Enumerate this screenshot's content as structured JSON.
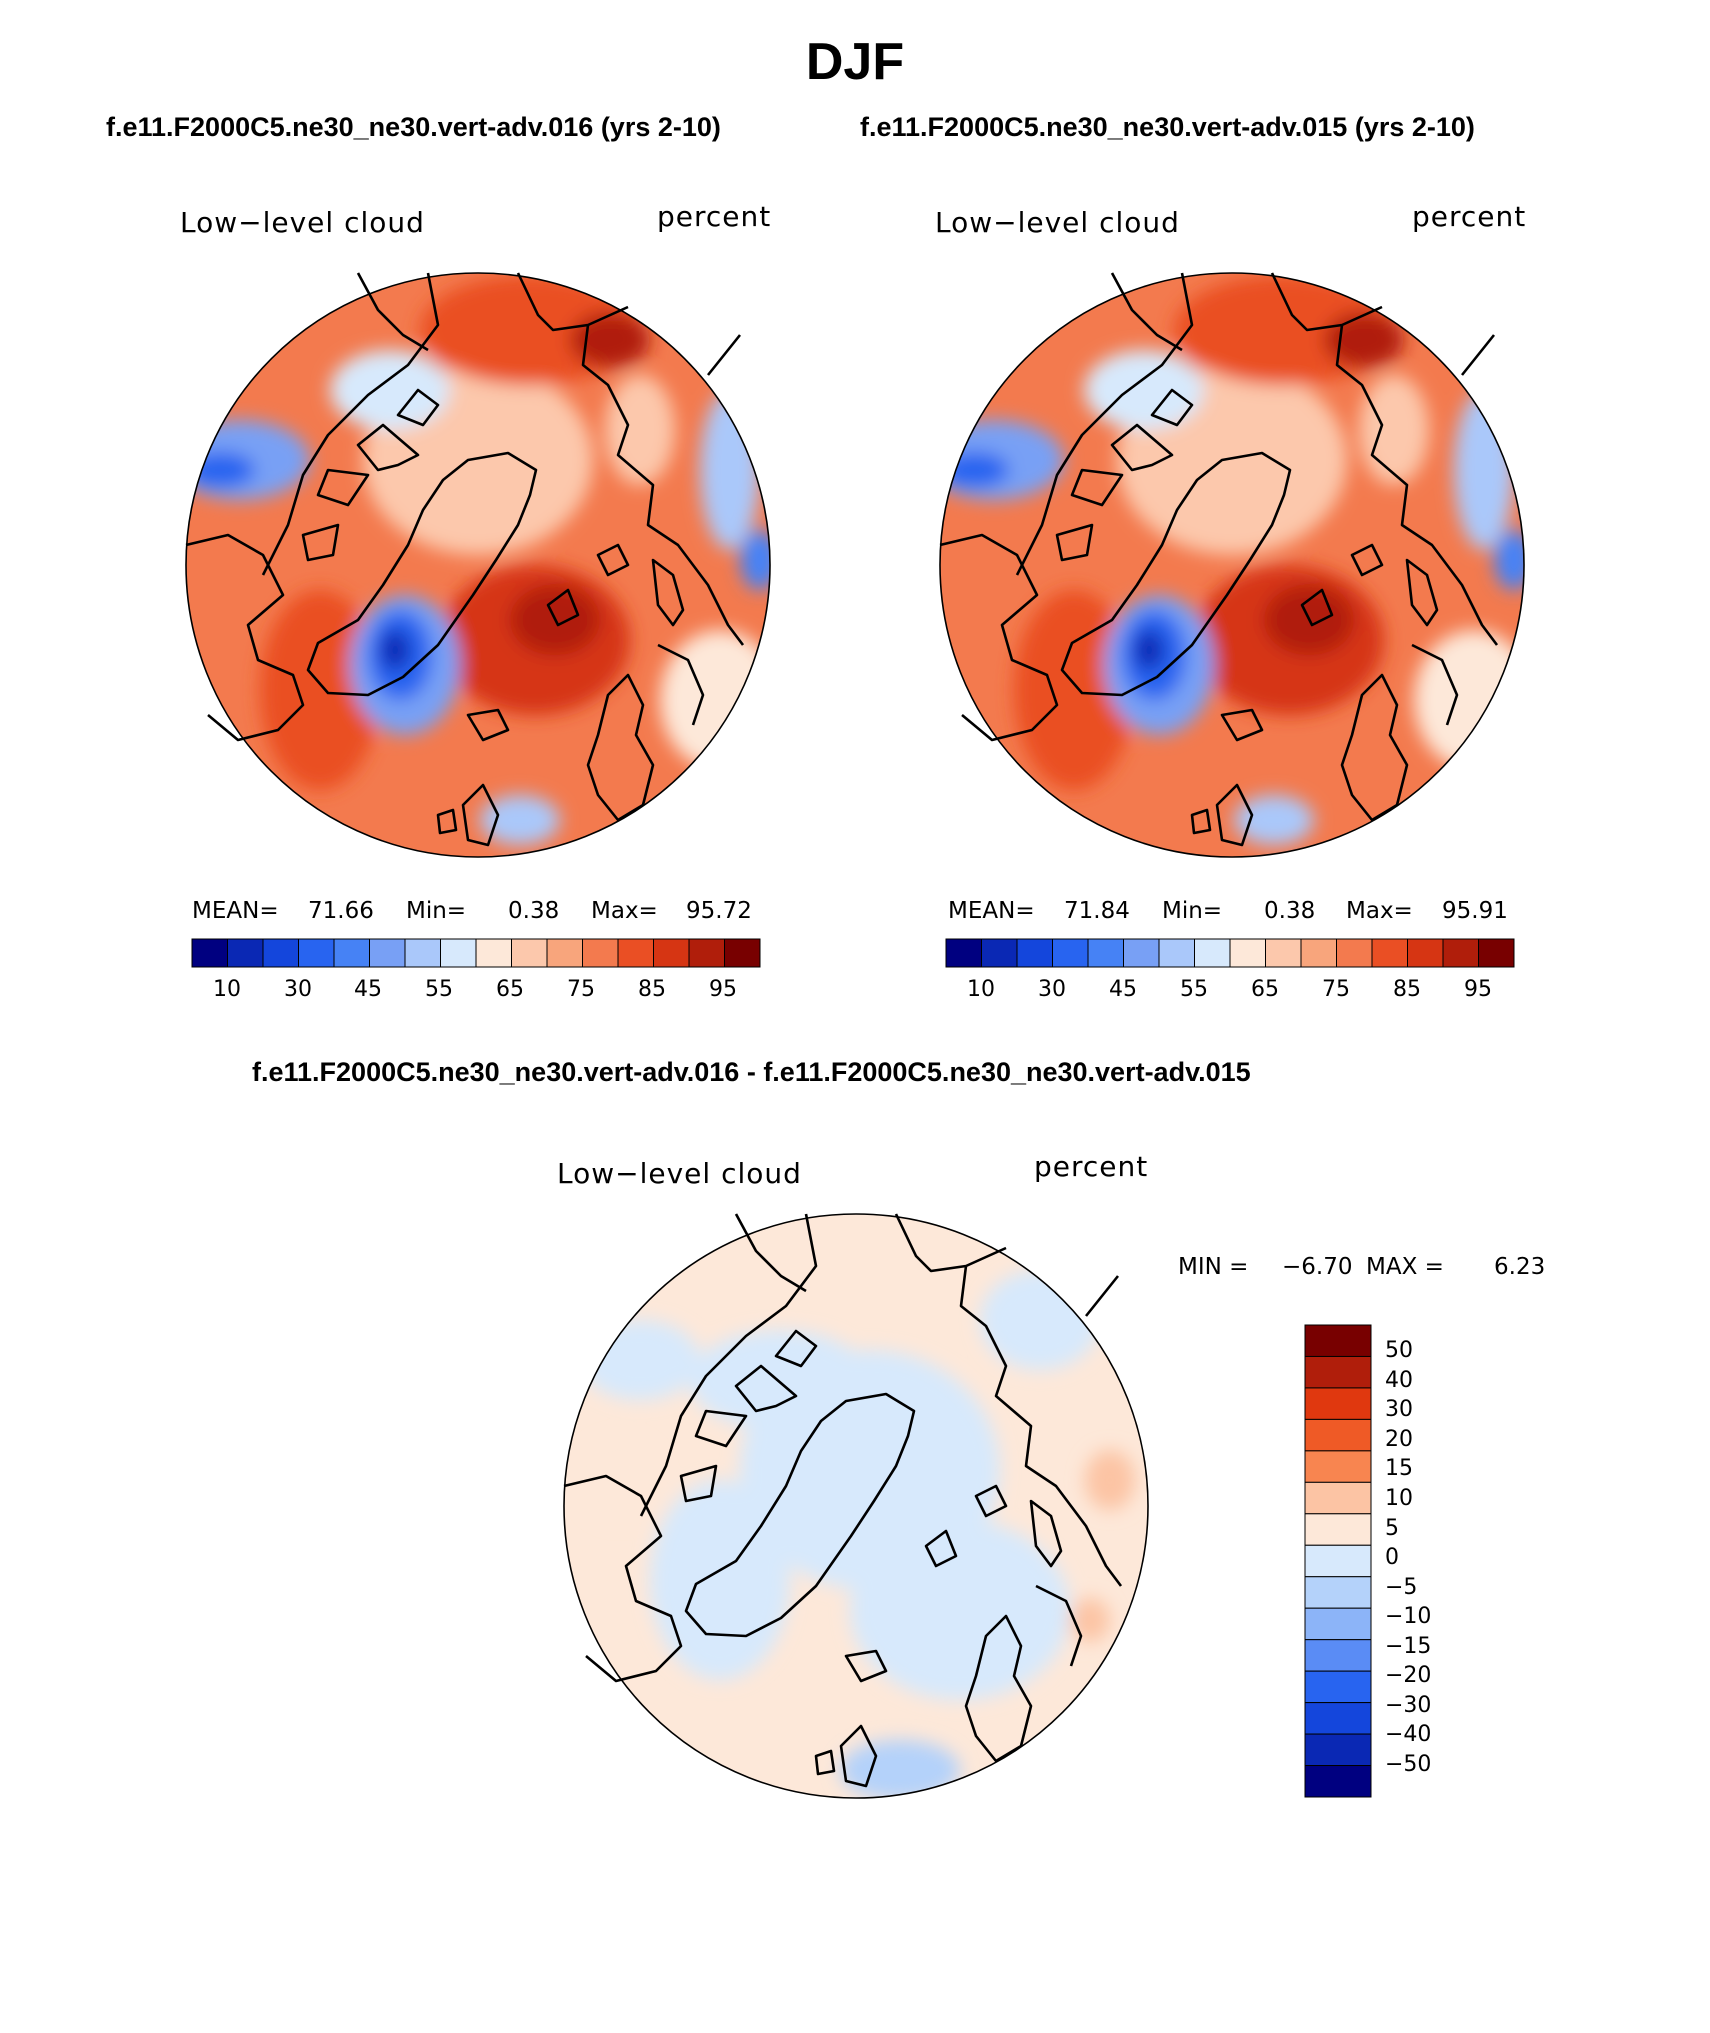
{
  "figure": {
    "season": "DJF",
    "case_a_title": "f.e11.F2000C5.ne30_ne30.vert-adv.016 (yrs 2-10)",
    "case_b_title": "f.e11.F2000C5.ne30_ne30.vert-adv.015 (yrs 2-10)",
    "diff_title": "f.e11.F2000C5.ne30_ne30.vert-adv.016 - f.e11.F2000C5.ne30_ne30.vert-adv.015"
  },
  "panels": [
    {
      "id": "case-a",
      "variable": "Low−level cloud",
      "units": "percent",
      "stats": {
        "mean_label": "MEAN=",
        "mean": "71.66",
        "min_label": "Min=",
        "min": "0.38",
        "max_label": "Max=",
        "max": "95.72"
      }
    },
    {
      "id": "case-b",
      "variable": "Low−level cloud",
      "units": "percent",
      "stats": {
        "mean_label": "MEAN=",
        "mean": "71.84",
        "min_label": "Min=",
        "min": "0.38",
        "max_label": "Max=",
        "max": "95.91"
      }
    },
    {
      "id": "difference",
      "variable": "Low−level cloud",
      "units": "percent",
      "stats": {
        "min_label": "MIN =",
        "min": "−6.70",
        "max_label": "MAX =",
        "max": "6.23"
      }
    }
  ],
  "colorbar_abs": {
    "colors": [
      "#000080",
      "#0a28b4",
      "#1446dc",
      "#2864f0",
      "#4682f5",
      "#78a0f5",
      "#aac8fa",
      "#d7e9fc",
      "#fde8d9",
      "#fcc8ac",
      "#f8a57c",
      "#f37a4e",
      "#ea4f24",
      "#d63513",
      "#b01e0b",
      "#780000"
    ],
    "tick_labels": [
      "10",
      "30",
      "45",
      "55",
      "65",
      "75",
      "85",
      "95"
    ]
  },
  "colorbar_diff": {
    "colors": [
      "#780000",
      "#b01e0b",
      "#e0380f",
      "#ef5a26",
      "#f88550",
      "#fcc4a4",
      "#fde8d9",
      "#d7e9fc",
      "#b4d2fa",
      "#8cb4f8",
      "#5a8cf5",
      "#2864f0",
      "#1446dc",
      "#0a28b4",
      "#000080"
    ],
    "tick_labels": [
      "50",
      "40",
      "30",
      "20",
      "15",
      "10",
      "5",
      "0",
      "−5",
      "−10",
      "−15",
      "−20",
      "−30",
      "−40",
      "−50"
    ]
  },
  "icons": {
    "map": "polar-stereographic-map",
    "coast": "coastline-lines"
  }
}
